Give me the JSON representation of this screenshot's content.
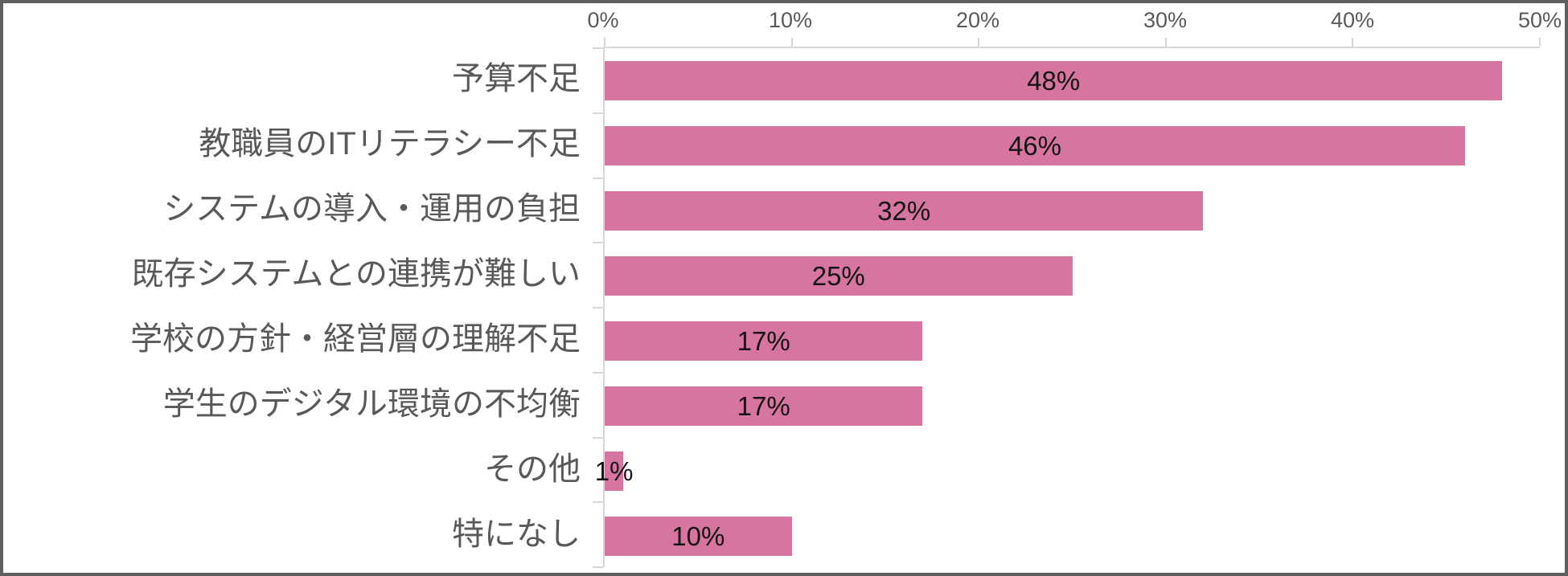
{
  "chart_data": {
    "type": "bar",
    "orientation": "horizontal",
    "title": "",
    "xlabel": "",
    "ylabel": "",
    "categories": [
      "予算不足",
      "教職員のITリテラシー不足",
      "システムの導入・運用の負担",
      "既存システムとの連携が難しい",
      "学校の方針・経営層の理解不足",
      "学生のデジタル環境の不均衡",
      "その他",
      "特になし"
    ],
    "values": [
      48,
      46,
      32,
      25,
      17,
      17,
      1,
      10
    ],
    "data_labels": [
      "48%",
      "46%",
      "32%",
      "25%",
      "17%",
      "17%",
      "1%",
      "10%"
    ],
    "x_axis": {
      "position": "top",
      "min": 0,
      "max": 50,
      "tick_step": 10,
      "ticks": [
        "0%",
        "10%",
        "20%",
        "30%",
        "40%",
        "50%"
      ]
    },
    "legend": false,
    "grid": false,
    "colors": {
      "bar": "#d6759f",
      "category_label": "#595959",
      "axis_label": "#595959",
      "value_label": "#141414",
      "axis_line": "#d7d7d7",
      "frame_border": "#5f5f5f",
      "background": "#ffffff"
    }
  }
}
